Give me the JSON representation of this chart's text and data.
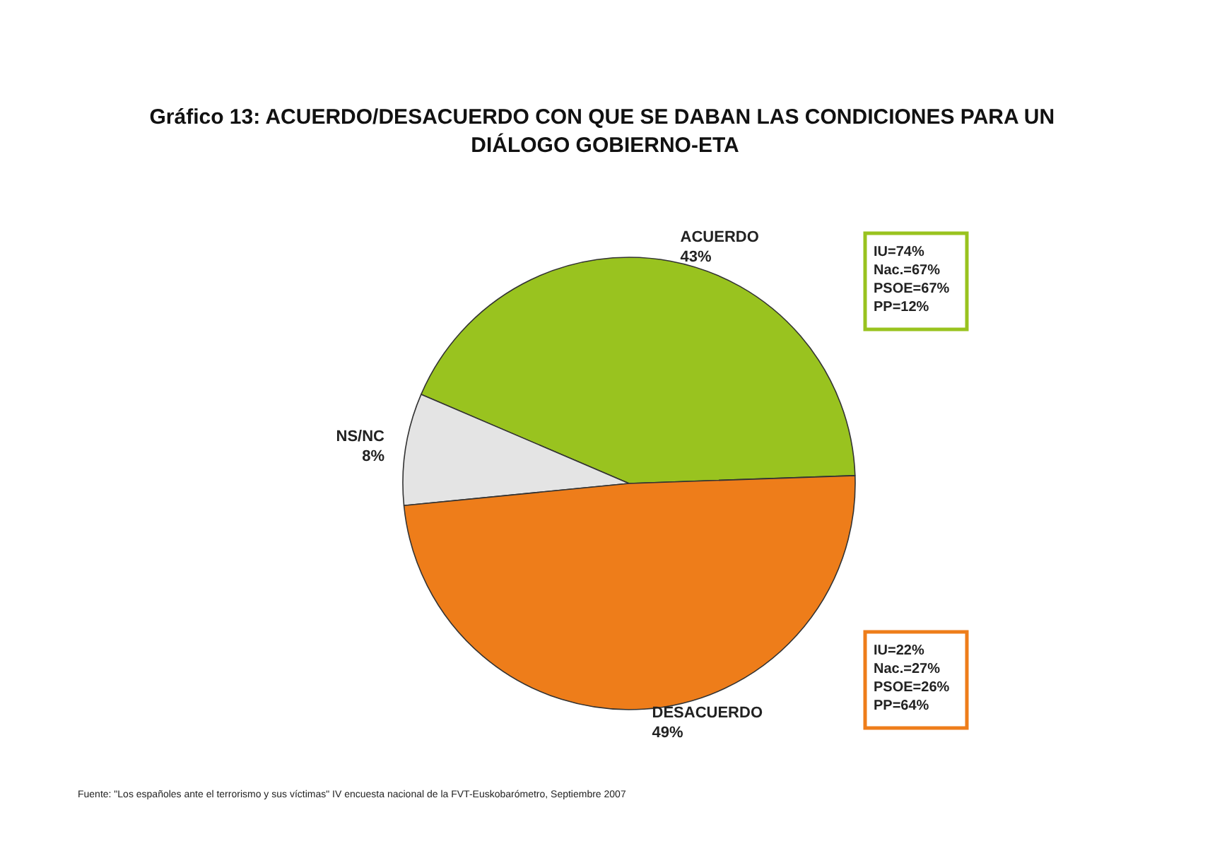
{
  "chart_data": {
    "type": "pie",
    "title": "Gráfico 13: ACUERDO/DESACUERDO CON QUE SE DABAN LAS CONDICIONES PARA UN DIÁLOGO GOBIERNO-ETA",
    "categories": [
      "ACUERDO",
      "NS/NC",
      "DESACUERDO"
    ],
    "values": [
      43,
      8,
      49
    ],
    "value_labels": [
      "43%",
      "8%",
      "49%"
    ],
    "colors": [
      "#99c31f",
      "#e4e4e4",
      "#ee7d1a"
    ],
    "legend": false,
    "annotations": [
      "IU=74%\nNac.=67%\nPSOE=67%\nPP=12%",
      "IU=22%\nNac.=27%\nPSOE=26%\nPP=64%",
      "Fuente: \"Los españoles ante el terrorismo y sus víctimas\" IV encuesta nacional de la FVT-Euskobarómetro, Septiembre 2007"
    ]
  }
}
